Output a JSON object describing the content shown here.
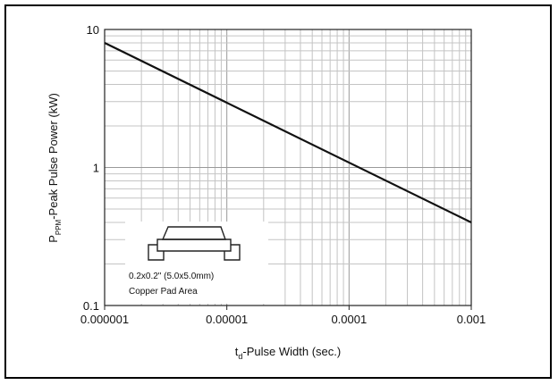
{
  "chart_data": {
    "type": "line",
    "x_scale": "log",
    "y_scale": "log",
    "xlim": [
      1e-06,
      0.001
    ],
    "ylim": [
      0.1,
      10
    ],
    "x_ticks": [
      "0.000001",
      "0.00001",
      "0.0001",
      "0.001"
    ],
    "y_ticks": [
      "0.1",
      "1",
      "10"
    ],
    "xlabel": {
      "main": "t",
      "sub": "d",
      "rest": "-Pulse Width (sec.)"
    },
    "ylabel": {
      "main": "P",
      "sub": "PPM",
      "rest": "-Peak Pulse Power (kW)"
    },
    "grid": true,
    "series": [
      {
        "x": [
          1e-06,
          0.001
        ],
        "y": [
          8,
          0.4
        ]
      }
    ],
    "inset": {
      "line1": "0.2x0.2\" (5.0x5.0mm)",
      "line2": "Copper Pad Area"
    }
  }
}
